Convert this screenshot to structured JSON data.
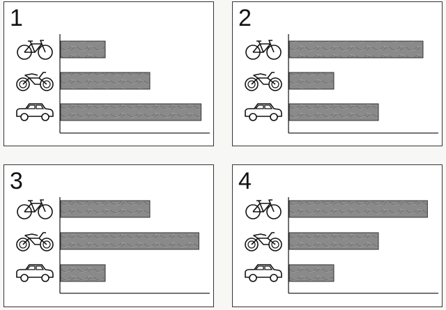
{
  "panels": [
    {
      "label": "1"
    },
    {
      "label": "2"
    },
    {
      "label": "3"
    },
    {
      "label": "4"
    }
  ],
  "icons": [
    "bicycle-icon",
    "motorcycle-icon",
    "car-icon"
  ],
  "colors": {
    "bar_fill": "#8a8a8a",
    "bar_stroke": "#333333",
    "axis": "#222222",
    "icon": "#111111"
  },
  "chart_data": [
    {
      "type": "bar",
      "orientation": "horizontal",
      "categories": [
        "bicycle",
        "motorcycle",
        "car"
      ],
      "values": [
        2,
        4,
        6.3
      ],
      "xlim": [
        0,
        7
      ]
    },
    {
      "type": "bar",
      "orientation": "horizontal",
      "categories": [
        "bicycle",
        "motorcycle",
        "car"
      ],
      "values": [
        6,
        2,
        4
      ],
      "xlim": [
        0,
        7
      ]
    },
    {
      "type": "bar",
      "orientation": "horizontal",
      "categories": [
        "bicycle",
        "motorcycle",
        "car"
      ],
      "values": [
        4,
        6.2,
        2
      ],
      "xlim": [
        0,
        7
      ]
    },
    {
      "type": "bar",
      "orientation": "horizontal",
      "categories": [
        "bicycle",
        "motorcycle",
        "car"
      ],
      "values": [
        6.2,
        4,
        2
      ],
      "xlim": [
        0,
        7
      ]
    }
  ]
}
